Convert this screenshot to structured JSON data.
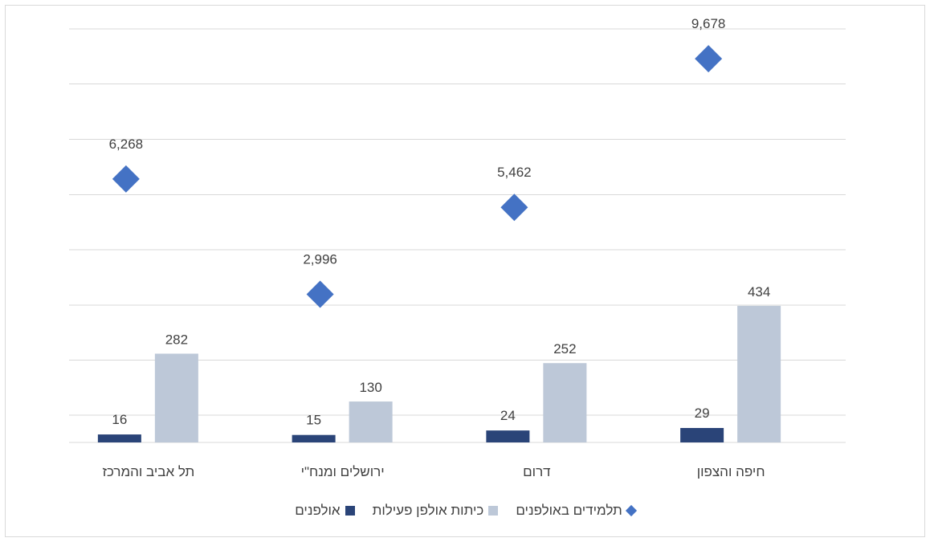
{
  "chart_data": {
    "type": "bar",
    "categories": [
      "חיפה והצפון",
      "דרום",
      "ירושלים ומנח\"י",
      "תל אביב והמרכז"
    ],
    "series": [
      {
        "name": "אולפנים",
        "kind": "bar",
        "color": "#2a4478",
        "values": [
          29,
          24,
          15,
          16
        ]
      },
      {
        "name": "כיתות אולפן פעילות",
        "kind": "bar",
        "color": "#bdc8d8",
        "values": [
          434,
          252,
          130,
          282
        ]
      },
      {
        "name": "תלמידים באולפנים",
        "kind": "marker",
        "color": "#4472c4",
        "values": [
          9678,
          5462,
          2996,
          6268
        ]
      }
    ],
    "data_labels": {
      "אולפנים": [
        "29",
        "24",
        "15",
        "16"
      ],
      "כיתות אולפן פעילות": [
        "434",
        "252",
        "130",
        "282"
      ],
      "תלמידים באולפנים": [
        "9,678",
        "5,462",
        "2,996",
        "6,268"
      ]
    },
    "grid": true,
    "legend_position": "bottom",
    "direction": "rtl"
  }
}
